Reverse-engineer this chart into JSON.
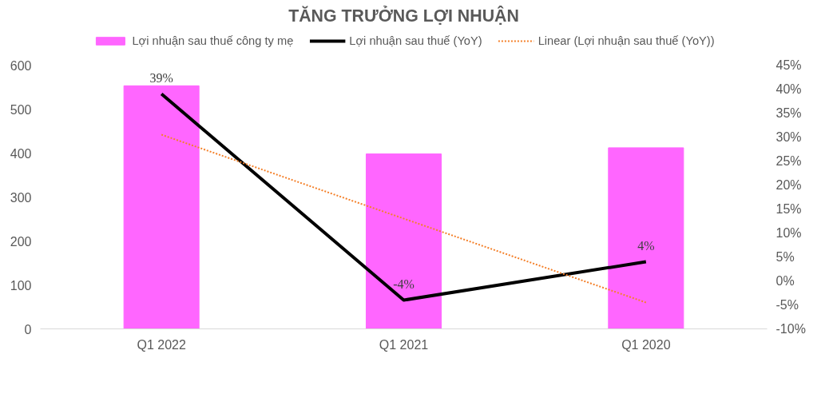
{
  "chart_data": {
    "type": "bar",
    "title": "TĂNG TRƯỞNG LỢI NHUẬN",
    "categories": [
      "Q1 2022",
      "Q1 2021",
      "Q1 2020"
    ],
    "series": [
      {
        "name": "Lợi nhuận sau thuế công ty mẹ",
        "color": "#ff66ff",
        "values": [
          553,
          398,
          412
        ]
      },
      {
        "name": "Lợi nhuận sau thuế (YoY)",
        "type": "line",
        "axis": "y2",
        "color": "#000000",
        "line_style": "solid",
        "values": [
          39,
          -4,
          4
        ],
        "value_labels": [
          "39%",
          "-4%",
          "4%"
        ]
      },
      {
        "name": "Linear (Lợi nhuận sau thuế (YoY))",
        "type": "line",
        "axis": "y2",
        "color": "#f4802a",
        "line_style": "dotted",
        "values": [
          30.5,
          13,
          -4.5
        ]
      }
    ],
    "ylim": [
      0,
      600
    ],
    "yticks": [
      0,
      100,
      200,
      300,
      400,
      500,
      600
    ],
    "y2lim": [
      -10,
      45
    ],
    "y2ticks": [
      {
        "value": -10,
        "label": "-10%"
      },
      {
        "value": -5,
        "label": "-5%"
      },
      {
        "value": 0,
        "label": "0%"
      },
      {
        "value": 5,
        "label": "5%"
      },
      {
        "value": 10,
        "label": "10%"
      },
      {
        "value": 15,
        "label": "15%"
      },
      {
        "value": 20,
        "label": "20%"
      },
      {
        "value": 25,
        "label": "25%"
      },
      {
        "value": 30,
        "label": "30%"
      },
      {
        "value": 35,
        "label": "35%"
      },
      {
        "value": 40,
        "label": "40%"
      },
      {
        "value": 45,
        "label": "45%"
      }
    ],
    "legend": "top",
    "grid": false
  }
}
